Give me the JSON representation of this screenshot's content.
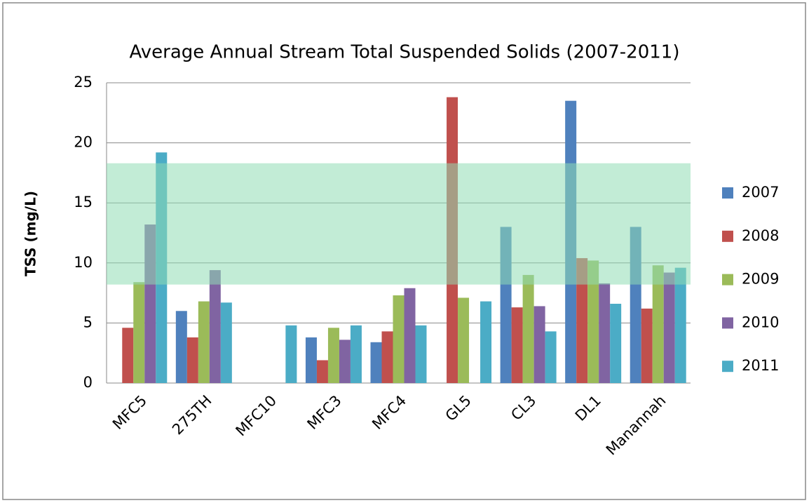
{
  "chart_data": {
    "type": "bar",
    "title": "Average Annual Stream Total Suspended Solids (2007-2011)",
    "y_label": "TSS (mg/L)",
    "categories": [
      "MFC5",
      "275TH",
      "MFC10",
      "MFC3",
      "MFC4",
      "GL5",
      "CL3",
      "DL1",
      "Manannah"
    ],
    "series": [
      {
        "name": "2007",
        "color": "#4f81bd",
        "values": [
          null,
          6.0,
          null,
          3.8,
          3.4,
          null,
          13.0,
          23.5,
          13.0
        ]
      },
      {
        "name": "2008",
        "color": "#c0504d",
        "values": [
          4.6,
          3.8,
          null,
          1.9,
          4.3,
          23.8,
          6.3,
          10.4,
          6.2
        ]
      },
      {
        "name": "2009",
        "color": "#9bbb59",
        "values": [
          8.4,
          6.8,
          null,
          4.6,
          7.3,
          7.1,
          9.0,
          10.2,
          9.8
        ]
      },
      {
        "name": "2010",
        "color": "#8064a2",
        "values": [
          13.2,
          9.4,
          null,
          3.6,
          7.9,
          null,
          6.4,
          8.3,
          9.2
        ]
      },
      {
        "name": "2011",
        "color": "#4bacc6",
        "values": [
          19.2,
          6.7,
          4.8,
          4.8,
          4.8,
          6.8,
          4.3,
          6.6,
          9.6
        ]
      }
    ],
    "shaded_range": [
      8.2,
      18.3
    ],
    "shaded_color": "#8fdcb4",
    "ylim": [
      0,
      25
    ],
    "yticks": [
      0,
      5,
      10,
      15,
      20,
      25
    ],
    "grid": true,
    "legend": "right"
  }
}
